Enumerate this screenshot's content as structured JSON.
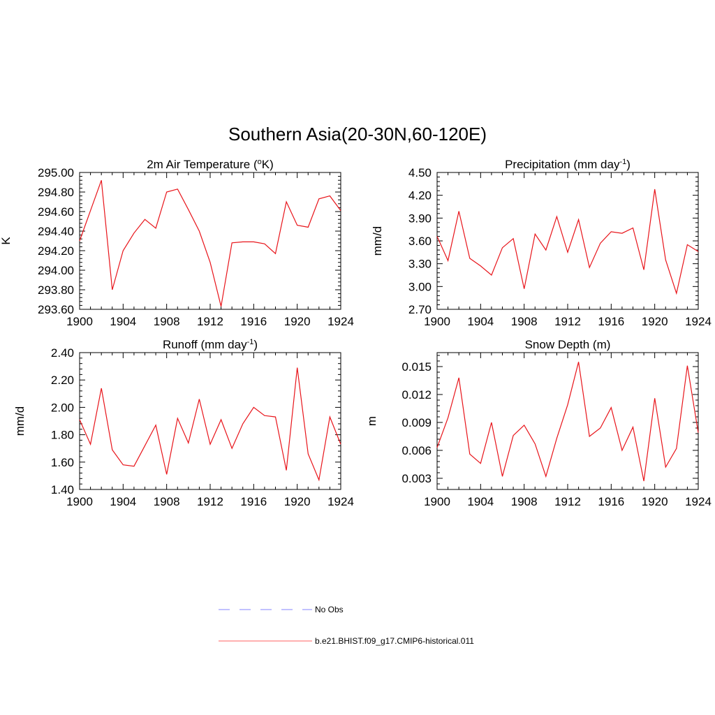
{
  "title": "Southern Asia(20-30N,60-120E)",
  "line_color": "#e8141a",
  "obs_color": "#9e9eff",
  "legend": [
    {
      "label": "No Obs",
      "style": "dashed",
      "color": "#9e9eff"
    },
    {
      "label": "b.e21.BHIST.f09_g17.CMIP6-historical.011",
      "style": "solid",
      "color": "#ff8080"
    }
  ],
  "chart_data": [
    {
      "type": "line",
      "title": "2m Air Temperature (°K)",
      "ylabel": "K",
      "x": [
        1900,
        1901,
        1902,
        1903,
        1904,
        1905,
        1906,
        1907,
        1908,
        1909,
        1910,
        1911,
        1912,
        1913,
        1914,
        1915,
        1916,
        1917,
        1918,
        1919,
        1920,
        1921,
        1922,
        1923,
        1924
      ],
      "values": [
        294.3,
        294.61,
        294.92,
        293.8,
        294.2,
        294.38,
        294.52,
        294.43,
        294.8,
        294.83,
        294.62,
        294.4,
        294.08,
        293.63,
        294.28,
        294.29,
        294.29,
        294.27,
        294.17,
        294.7,
        294.46,
        294.44,
        294.73,
        294.76,
        294.61
      ],
      "xlim": [
        1900,
        1924
      ],
      "ylim": [
        293.6,
        295.0
      ],
      "xticks": [
        "1900",
        "1904",
        "1908",
        "1912",
        "1916",
        "1920",
        "1924"
      ],
      "yticks": [
        "293.60",
        "293.80",
        "294.00",
        "294.20",
        "294.40",
        "294.60",
        "294.80",
        "295.00"
      ]
    },
    {
      "type": "line",
      "title": "Precipitation (mm day⁻¹)",
      "ylabel": "mm/d",
      "x": [
        1900,
        1901,
        1902,
        1903,
        1904,
        1905,
        1906,
        1907,
        1908,
        1909,
        1910,
        1911,
        1912,
        1913,
        1914,
        1915,
        1916,
        1917,
        1918,
        1919,
        1920,
        1921,
        1922,
        1923,
        1924
      ],
      "values": [
        3.66,
        3.34,
        3.99,
        3.37,
        3.27,
        3.15,
        3.51,
        3.63,
        2.97,
        3.69,
        3.48,
        3.92,
        3.45,
        3.88,
        3.25,
        3.57,
        3.72,
        3.7,
        3.77,
        3.22,
        4.28,
        3.35,
        2.91,
        3.55,
        3.46
      ],
      "xlim": [
        1900,
        1924
      ],
      "ylim": [
        2.7,
        4.5
      ],
      "xticks": [
        "1900",
        "1904",
        "1908",
        "1912",
        "1916",
        "1920",
        "1924"
      ],
      "yticks": [
        "2.70",
        "3.00",
        "3.30",
        "3.60",
        "3.90",
        "4.20",
        "4.50"
      ]
    },
    {
      "type": "line",
      "title": "Runoff (mm day⁻¹)",
      "ylabel": "mm/d",
      "x": [
        1900,
        1901,
        1902,
        1903,
        1904,
        1905,
        1906,
        1907,
        1908,
        1909,
        1910,
        1911,
        1912,
        1913,
        1914,
        1915,
        1916,
        1917,
        1918,
        1919,
        1920,
        1921,
        1922,
        1923,
        1924
      ],
      "values": [
        1.91,
        1.73,
        2.14,
        1.69,
        1.58,
        1.57,
        1.72,
        1.87,
        1.51,
        1.92,
        1.74,
        2.06,
        1.73,
        1.91,
        1.7,
        1.88,
        2.0,
        1.94,
        1.93,
        1.54,
        2.29,
        1.66,
        1.47,
        1.93,
        1.73
      ],
      "xlim": [
        1900,
        1924
      ],
      "ylim": [
        1.4,
        2.4
      ],
      "xticks": [
        "1900",
        "1904",
        "1908",
        "1912",
        "1916",
        "1920",
        "1924"
      ],
      "yticks": [
        "1.40",
        "1.60",
        "1.80",
        "2.00",
        "2.20",
        "2.40"
      ]
    },
    {
      "type": "line",
      "title": "Snow Depth (m)",
      "ylabel": "m",
      "x": [
        1900,
        1901,
        1902,
        1903,
        1904,
        1905,
        1906,
        1907,
        1908,
        1909,
        1910,
        1911,
        1912,
        1913,
        1914,
        1915,
        1916,
        1917,
        1918,
        1919,
        1920,
        1921,
        1922,
        1923,
        1924
      ],
      "values": [
        0.0063,
        0.0095,
        0.0138,
        0.0056,
        0.0046,
        0.009,
        0.0032,
        0.0076,
        0.0087,
        0.0067,
        0.0032,
        0.0073,
        0.0109,
        0.0155,
        0.0075,
        0.0084,
        0.0106,
        0.006,
        0.0085,
        0.0027,
        0.0116,
        0.0042,
        0.0062,
        0.0151,
        0.0079
      ],
      "xlim": [
        1900,
        1924
      ],
      "ylim": [
        0.0018,
        0.0165
      ],
      "xticks": [
        "1900",
        "1904",
        "1908",
        "1912",
        "1916",
        "1920",
        "1924"
      ],
      "yticks": [
        "0.003",
        "0.006",
        "0.009",
        "0.012",
        "0.015"
      ],
      "ytick_values": [
        0.003,
        0.006,
        0.009,
        0.012,
        0.015
      ]
    }
  ]
}
